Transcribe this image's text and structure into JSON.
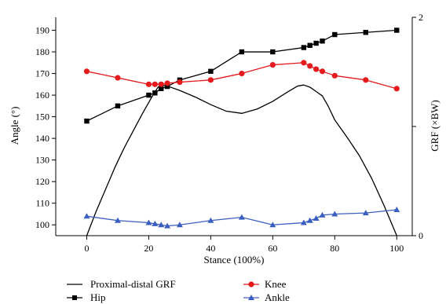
{
  "chart_data": {
    "type": "line",
    "xlabel": "Stance (100%)",
    "ylabel": "Angle (°)",
    "y2label": "GRF (×BW)",
    "xlim": [
      -10,
      105
    ],
    "ylim": [
      95,
      196
    ],
    "y2lim": [
      0,
      2
    ],
    "xticks": [
      0,
      20,
      40,
      60,
      80,
      100
    ],
    "yticks": [
      100,
      110,
      120,
      130,
      140,
      150,
      160,
      170,
      180,
      190
    ],
    "y2ticks_labeled": [
      0,
      2
    ],
    "y2ticks_minor": [
      1
    ],
    "grid": false,
    "legend_position": "bottom",
    "series": [
      {
        "name": "Proximal-distal GRF",
        "axis": "right",
        "color": "#000000",
        "marker": "none",
        "x": [
          0,
          3,
          6,
          9,
          12,
          15,
          18,
          21,
          23,
          24,
          26,
          30,
          35,
          40,
          45,
          50,
          55,
          60,
          65,
          68,
          70,
          72,
          74,
          76,
          78,
          80,
          84,
          88,
          92,
          96,
          100
        ],
        "values": [
          0.0,
          0.22,
          0.42,
          0.62,
          0.8,
          0.96,
          1.12,
          1.27,
          1.36,
          1.38,
          1.37,
          1.33,
          1.27,
          1.2,
          1.14,
          1.12,
          1.16,
          1.23,
          1.32,
          1.37,
          1.38,
          1.36,
          1.32,
          1.28,
          1.18,
          1.06,
          0.9,
          0.73,
          0.52,
          0.27,
          0.0
        ]
      },
      {
        "name": "Hip",
        "axis": "left",
        "color": "#000000",
        "marker": "square",
        "x": [
          0,
          10,
          20,
          22,
          24,
          26,
          30,
          40,
          50,
          60,
          70,
          72,
          74,
          76,
          80,
          90,
          100
        ],
        "values": [
          148,
          155,
          160,
          161,
          163,
          164,
          167,
          171,
          180,
          180,
          182,
          183,
          184,
          185,
          188,
          189,
          190
        ]
      },
      {
        "name": "Knee",
        "axis": "left",
        "color": "#e41a1c",
        "marker": "circle",
        "x": [
          0,
          10,
          20,
          22,
          24,
          26,
          30,
          40,
          50,
          60,
          70,
          72,
          74,
          76,
          80,
          90,
          100
        ],
        "values": [
          171,
          168,
          165,
          165,
          165,
          165.5,
          166,
          167,
          170,
          174,
          175,
          173.5,
          172,
          171,
          169,
          167,
          163
        ]
      },
      {
        "name": "Ankle",
        "axis": "left",
        "color": "#3b5fc0",
        "marker": "triangle",
        "x": [
          0,
          10,
          20,
          22,
          24,
          26,
          30,
          40,
          50,
          60,
          70,
          72,
          74,
          76,
          80,
          90,
          100
        ],
        "values": [
          104,
          102,
          101,
          100.5,
          100,
          99.5,
          100,
          102,
          103.5,
          100,
          101,
          102,
          103,
          104.5,
          105,
          105.5,
          107
        ]
      }
    ]
  }
}
